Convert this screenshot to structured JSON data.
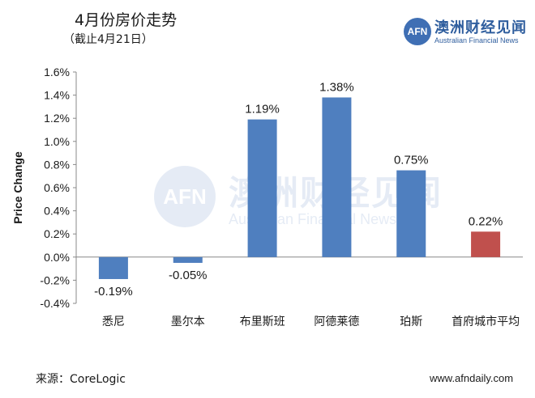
{
  "header": {
    "title": "4月份房价走势",
    "subtitle": "（截止4月21日）"
  },
  "logo": {
    "mark": "AFN",
    "name_cn": "澳洲财经见闻",
    "name_en": "Australian Financial News"
  },
  "watermark": {
    "mark": "AFN",
    "name_cn": "澳洲财经见闻",
    "name_en": "Australian Financial News"
  },
  "footer": {
    "source": "来源：CoreLogic",
    "website": "www.afndaily.com"
  },
  "chart_data": {
    "type": "bar",
    "title": "4月份房价走势",
    "ylabel": "Price Change",
    "xlabel": "",
    "categories": [
      "悉尼",
      "墨尔本",
      "布里斯班",
      "阿德莱德",
      "珀斯",
      "首府城市平均"
    ],
    "values": [
      -0.19,
      -0.05,
      1.19,
      1.38,
      0.75,
      0.22
    ],
    "value_labels": [
      "-0.19%",
      "-0.05%",
      "1.19%",
      "1.38%",
      "0.75%",
      "0.22%"
    ],
    "bar_colors": [
      "#4f7fbf",
      "#4f7fbf",
      "#4f7fbf",
      "#4f7fbf",
      "#4f7fbf",
      "#c0504d"
    ],
    "ylim": [
      -0.4,
      1.6
    ],
    "yticks": [
      1.6,
      1.4,
      1.2,
      1.0,
      0.8,
      0.6,
      0.4,
      0.2,
      0.0,
      -0.2,
      -0.4
    ],
    "ytick_labels": [
      "1.6%",
      "1.4%",
      "1.2%",
      "1.0%",
      "0.8%",
      "0.6%",
      "0.4%",
      "0.2%",
      "0.0%",
      "-0.2%",
      "-0.4%"
    ],
    "grid": false,
    "legend": "none"
  }
}
